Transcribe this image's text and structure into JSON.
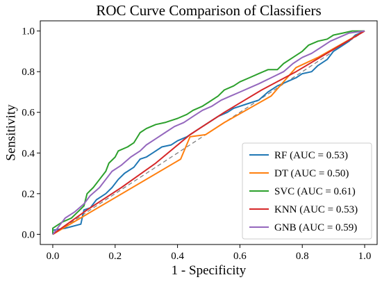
{
  "chart_data": {
    "type": "line",
    "title": "ROC Curve Comparison of Classifiers",
    "xlabel": "1 - Specificity",
    "ylabel": "Sensitivity",
    "xlim": [
      -0.04,
      1.04
    ],
    "ylim": [
      -0.05,
      1.05
    ],
    "xticks": [
      "0.0",
      "0.2",
      "0.4",
      "0.6",
      "0.8",
      "1.0"
    ],
    "yticks": [
      "0.0",
      "0.2",
      "0.4",
      "0.6",
      "0.8",
      "1.0"
    ],
    "grid": false,
    "legend_position": "lower-right",
    "reference_line": {
      "points": [
        [
          0,
          0
        ],
        [
          1,
          1
        ]
      ],
      "style": "dashed",
      "color": "#808080"
    },
    "series": [
      {
        "name": "RF (AUC = 0.53)",
        "color": "#1f77b4",
        "points": [
          [
            0,
            0
          ],
          [
            0,
            0.02
          ],
          [
            0.04,
            0.03
          ],
          [
            0.09,
            0.05
          ],
          [
            0.1,
            0.12
          ],
          [
            0.12,
            0.13
          ],
          [
            0.14,
            0.17
          ],
          [
            0.17,
            0.2
          ],
          [
            0.19,
            0.23
          ],
          [
            0.21,
            0.27
          ],
          [
            0.23,
            0.3
          ],
          [
            0.26,
            0.33
          ],
          [
            0.28,
            0.37
          ],
          [
            0.3,
            0.38
          ],
          [
            0.32,
            0.4
          ],
          [
            0.35,
            0.43
          ],
          [
            0.38,
            0.44
          ],
          [
            0.4,
            0.46
          ],
          [
            0.43,
            0.48
          ],
          [
            0.45,
            0.5
          ],
          [
            0.47,
            0.52
          ],
          [
            0.5,
            0.55
          ],
          [
            0.53,
            0.58
          ],
          [
            0.56,
            0.6
          ],
          [
            0.58,
            0.62
          ],
          [
            0.62,
            0.64
          ],
          [
            0.66,
            0.66
          ],
          [
            0.69,
            0.7
          ],
          [
            0.72,
            0.73
          ],
          [
            0.75,
            0.75
          ],
          [
            0.78,
            0.77
          ],
          [
            0.8,
            0.79
          ],
          [
            0.83,
            0.8
          ],
          [
            0.85,
            0.83
          ],
          [
            0.88,
            0.86
          ],
          [
            0.9,
            0.9
          ],
          [
            0.92,
            0.92
          ],
          [
            0.95,
            0.95
          ],
          [
            0.97,
            0.98
          ],
          [
            1,
            1
          ]
        ]
      },
      {
        "name": "DT (AUC = 0.50)",
        "color": "#ff7f0e",
        "points": [
          [
            0,
            0
          ],
          [
            0.41,
            0.37
          ],
          [
            0.44,
            0.48
          ],
          [
            0.49,
            0.49
          ],
          [
            0.55,
            0.55
          ],
          [
            0.7,
            0.68
          ],
          [
            0.78,
            0.82
          ],
          [
            0.85,
            0.87
          ],
          [
            1,
            1
          ]
        ]
      },
      {
        "name": "SVC (AUC = 0.61)",
        "color": "#2ca02c",
        "points": [
          [
            0,
            0
          ],
          [
            0,
            0.03
          ],
          [
            0.03,
            0.06
          ],
          [
            0.06,
            0.08
          ],
          [
            0.08,
            0.11
          ],
          [
            0.1,
            0.14
          ],
          [
            0.11,
            0.2
          ],
          [
            0.13,
            0.23
          ],
          [
            0.15,
            0.27
          ],
          [
            0.17,
            0.31
          ],
          [
            0.18,
            0.35
          ],
          [
            0.2,
            0.38
          ],
          [
            0.21,
            0.41
          ],
          [
            0.24,
            0.43
          ],
          [
            0.26,
            0.45
          ],
          [
            0.28,
            0.5
          ],
          [
            0.3,
            0.52
          ],
          [
            0.33,
            0.54
          ],
          [
            0.36,
            0.55
          ],
          [
            0.38,
            0.56
          ],
          [
            0.4,
            0.57
          ],
          [
            0.43,
            0.59
          ],
          [
            0.45,
            0.61
          ],
          [
            0.48,
            0.63
          ],
          [
            0.5,
            0.65
          ],
          [
            0.53,
            0.68
          ],
          [
            0.55,
            0.71
          ],
          [
            0.58,
            0.73
          ],
          [
            0.6,
            0.75
          ],
          [
            0.63,
            0.77
          ],
          [
            0.66,
            0.79
          ],
          [
            0.69,
            0.81
          ],
          [
            0.72,
            0.81
          ],
          [
            0.74,
            0.84
          ],
          [
            0.77,
            0.87
          ],
          [
            0.8,
            0.9
          ],
          [
            0.82,
            0.93
          ],
          [
            0.85,
            0.95
          ],
          [
            0.88,
            0.96
          ],
          [
            0.9,
            0.98
          ],
          [
            0.93,
            0.99
          ],
          [
            0.96,
            1
          ],
          [
            1,
            1
          ]
        ]
      },
      {
        "name": "KNN (AUC = 0.53)",
        "color": "#d62728",
        "points": [
          [
            0,
            0
          ],
          [
            0.11,
            0.12
          ],
          [
            0.22,
            0.23
          ],
          [
            0.33,
            0.35
          ],
          [
            0.44,
            0.49
          ],
          [
            0.55,
            0.6
          ],
          [
            0.67,
            0.71
          ],
          [
            0.78,
            0.8
          ],
          [
            0.89,
            0.9
          ],
          [
            1,
            1
          ]
        ]
      },
      {
        "name": "GNB (AUC = 0.59)",
        "color": "#9467bd",
        "points": [
          [
            0,
            0
          ],
          [
            0.02,
            0.04
          ],
          [
            0.04,
            0.08
          ],
          [
            0.07,
            0.11
          ],
          [
            0.1,
            0.15
          ],
          [
            0.12,
            0.19
          ],
          [
            0.15,
            0.23
          ],
          [
            0.17,
            0.27
          ],
          [
            0.19,
            0.31
          ],
          [
            0.22,
            0.34
          ],
          [
            0.25,
            0.38
          ],
          [
            0.28,
            0.41
          ],
          [
            0.3,
            0.44
          ],
          [
            0.33,
            0.47
          ],
          [
            0.36,
            0.5
          ],
          [
            0.39,
            0.53
          ],
          [
            0.42,
            0.55
          ],
          [
            0.45,
            0.58
          ],
          [
            0.48,
            0.61
          ],
          [
            0.51,
            0.63
          ],
          [
            0.54,
            0.66
          ],
          [
            0.57,
            0.68
          ],
          [
            0.6,
            0.7
          ],
          [
            0.63,
            0.72
          ],
          [
            0.66,
            0.74
          ],
          [
            0.7,
            0.77
          ],
          [
            0.74,
            0.8
          ],
          [
            0.77,
            0.84
          ],
          [
            0.8,
            0.87
          ],
          [
            0.83,
            0.89
          ],
          [
            0.86,
            0.92
          ],
          [
            0.89,
            0.95
          ],
          [
            0.92,
            0.97
          ],
          [
            0.95,
            0.99
          ],
          [
            1,
            1
          ]
        ]
      }
    ]
  }
}
